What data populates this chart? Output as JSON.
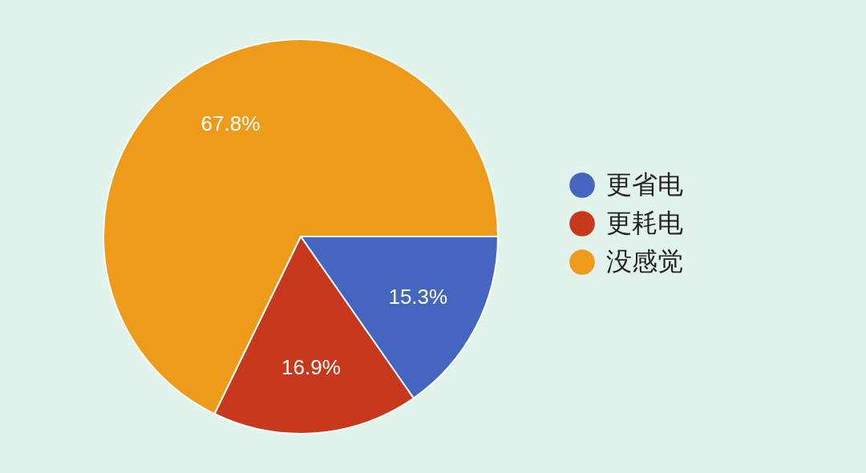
{
  "chart_data": {
    "type": "pie",
    "categories": [
      "更省电",
      "更耗电",
      "没感觉"
    ],
    "values": [
      15.3,
      16.9,
      67.8
    ],
    "colors": [
      "#4466c0",
      "#c8381c",
      "#ee9a1a"
    ],
    "value_labels": [
      "15.3%",
      "16.9%",
      "67.8%"
    ],
    "legend": "right"
  }
}
